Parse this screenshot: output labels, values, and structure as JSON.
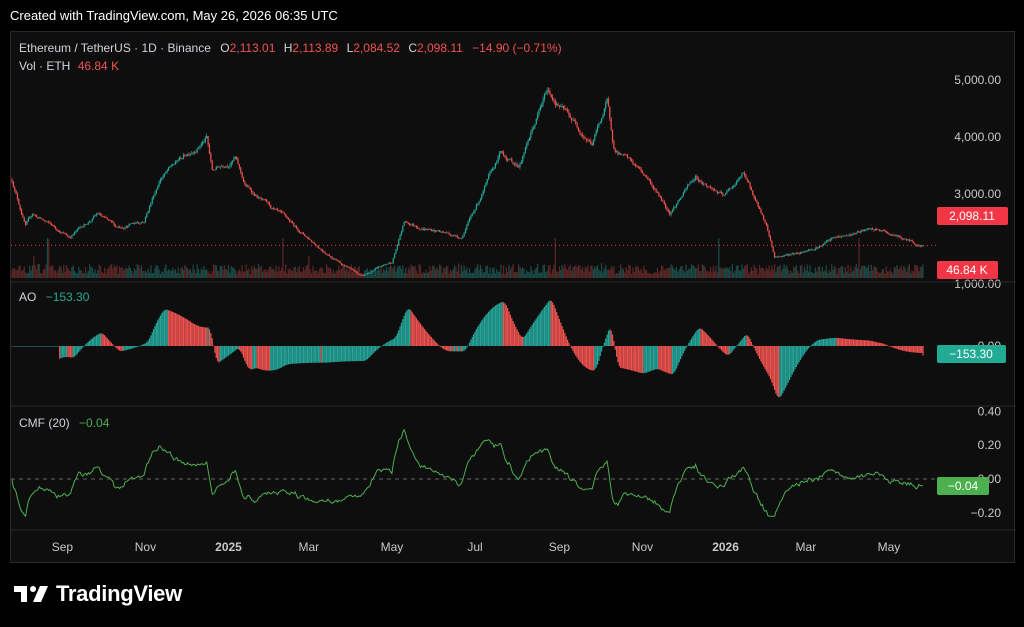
{
  "header": {
    "caption": "Created with TradingView.com, May 26, 2026 06:35 UTC"
  },
  "footer": {
    "brand": "TradingView"
  },
  "colors": {
    "up": "#26a69a",
    "down": "#ef5350",
    "ao_up": "#26a69a",
    "ao_down": "#ef5350",
    "cmf": "#4caf50",
    "price_badge": "#f23645",
    "ao_badge": "#22ab94",
    "cmf_badge": "#4caf50",
    "text": "#d1d4dc",
    "grid_text": "#c8c8c8"
  },
  "legend": {
    "symbol": "Ethereum / TetherUS · 1D · Binance",
    "o_label": "O",
    "o_value": "2,113.01",
    "h_label": "H",
    "h_value": "2,113.89",
    "l_label": "L",
    "l_value": "2,084.52",
    "c_label": "C",
    "c_value": "2,098.11",
    "change": "−14.90 (−0.71%)",
    "vol_label": "Vol · ETH",
    "vol_value": "46.84 K",
    "ao_label": "AO",
    "ao_value": "−153.30",
    "cmf_label": "CMF (20)",
    "cmf_value": "−0.04"
  },
  "badges": {
    "price": "2,098.11",
    "volume": "46.84 K",
    "ao": "−153.30",
    "cmf": "−0.04"
  },
  "chart_data": [
    {
      "type": "candlestick",
      "title": "Ethereum / TetherUS · 1D · Binance",
      "x_ticks": [
        "Sep",
        "Nov",
        "2025",
        "Mar",
        "May",
        "Jul",
        "Sep",
        "Nov",
        "2026",
        "Mar",
        "May"
      ],
      "y_ticks": [
        "5,000.00",
        "4,000.00",
        "3,000.00"
      ],
      "ylim": [
        1500,
        5200
      ],
      "last_price": 2098.11,
      "close_series_anchors": [
        {
          "x": "2024-07-26",
          "close": 3250
        },
        {
          "x": "2024-08-05",
          "close": 2450
        },
        {
          "x": "2024-08-10",
          "close": 2650
        },
        {
          "x": "2024-09-06",
          "close": 2250
        },
        {
          "x": "2024-09-27",
          "close": 2650
        },
        {
          "x": "2024-10-10",
          "close": 2400
        },
        {
          "x": "2024-10-31",
          "close": 2550
        },
        {
          "x": "2024-11-12",
          "close": 3300
        },
        {
          "x": "2024-12-16",
          "close": 4000
        },
        {
          "x": "2024-12-20",
          "close": 3400
        },
        {
          "x": "2025-01-06",
          "close": 3650
        },
        {
          "x": "2025-01-13",
          "close": 3150
        },
        {
          "x": "2025-02-03",
          "close": 2700
        },
        {
          "x": "2025-03-10",
          "close": 2050
        },
        {
          "x": "2025-04-09",
          "close": 1550
        },
        {
          "x": "2025-05-01",
          "close": 1800
        },
        {
          "x": "2025-05-10",
          "close": 2500
        },
        {
          "x": "2025-06-21",
          "close": 2250
        },
        {
          "x": "2025-07-20",
          "close": 3700
        },
        {
          "x": "2025-08-02",
          "close": 3500
        },
        {
          "x": "2025-08-23",
          "close": 4800
        },
        {
          "x": "2025-09-25",
          "close": 3900
        },
        {
          "x": "2025-10-06",
          "close": 4600
        },
        {
          "x": "2025-10-11",
          "close": 3800
        },
        {
          "x": "2025-11-04",
          "close": 3300
        },
        {
          "x": "2025-11-21",
          "close": 2700
        },
        {
          "x": "2025-12-10",
          "close": 3300
        },
        {
          "x": "2025-12-31",
          "close": 2950
        },
        {
          "x": "2026-01-14",
          "close": 3350
        },
        {
          "x": "2026-01-31",
          "close": 2450
        },
        {
          "x": "2026-02-06",
          "close": 1900
        },
        {
          "x": "2026-02-20",
          "close": 1950
        },
        {
          "x": "2026-03-10",
          "close": 2100
        },
        {
          "x": "2026-03-20",
          "close": 2200
        },
        {
          "x": "2026-04-14",
          "close": 2350
        },
        {
          "x": "2026-04-24",
          "close": 2350
        },
        {
          "x": "2026-05-26",
          "close": 2098.11
        }
      ]
    },
    {
      "type": "bar",
      "title": "Vol · ETH",
      "last_value_label": "46.84 K"
    },
    {
      "type": "bar",
      "title": "AO",
      "y_ticks": [
        "1,000.00",
        "0.00"
      ],
      "last_value": -153.3
    },
    {
      "type": "line",
      "title": "CMF (20)",
      "y_ticks": [
        "0.40",
        "0.20",
        "0.00",
        "−0.20"
      ],
      "ylim": [
        -0.25,
        0.42
      ],
      "last_value": -0.04
    }
  ]
}
